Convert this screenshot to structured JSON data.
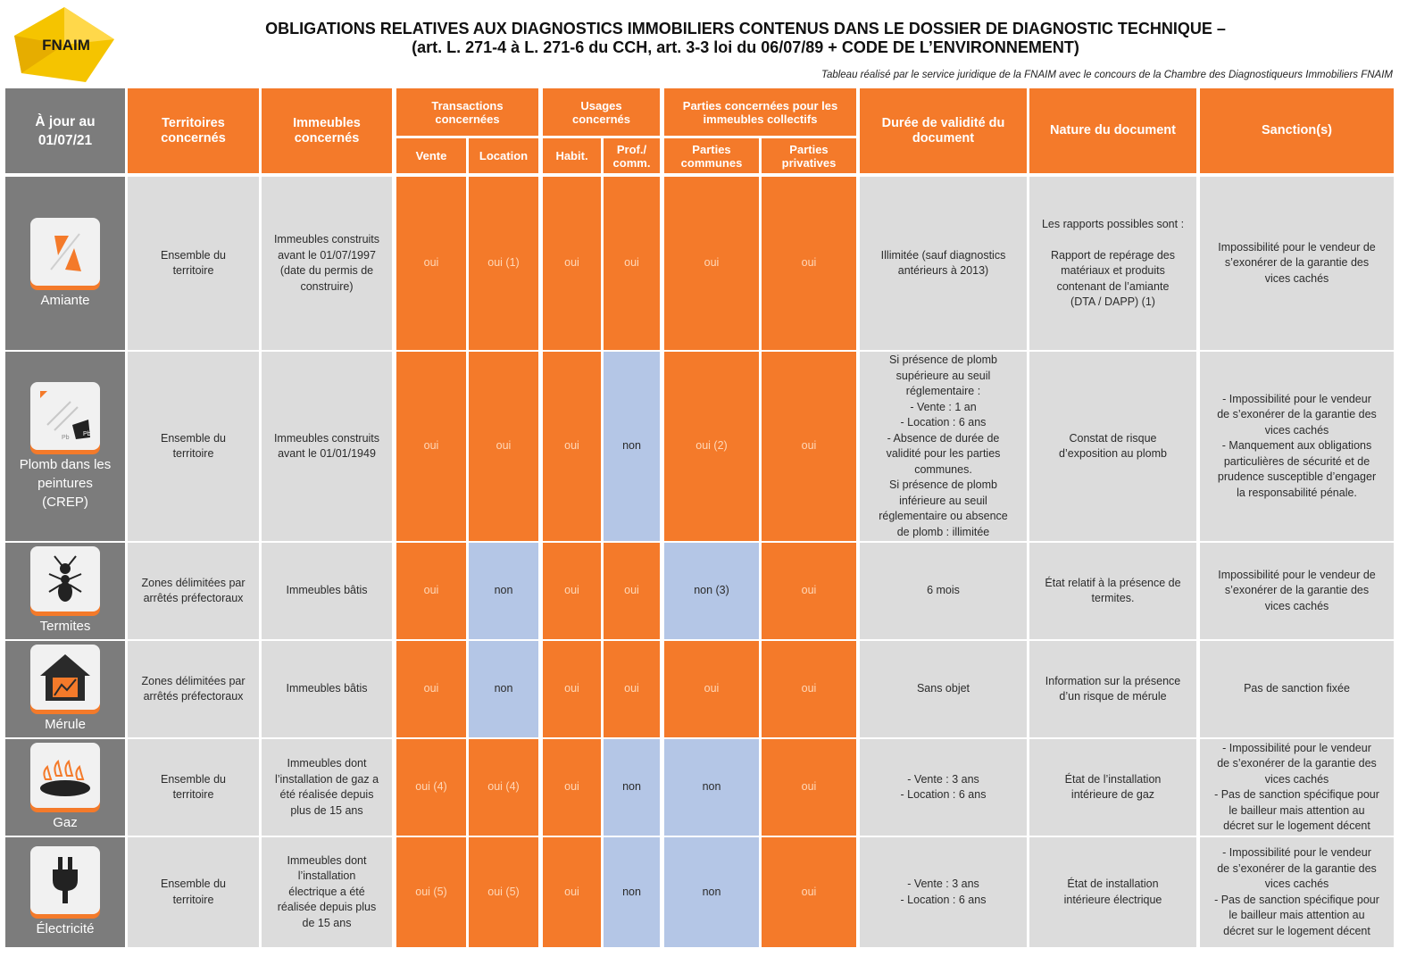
{
  "logo_text": "FNAIM",
  "title_line1": "OBLIGATIONS RELATIVES AUX DIAGNOSTICS IMMOBILIERS CONTENUS DANS LE DOSSIER DE DIAGNOSTIC TECHNIQUE –",
  "title_line2": "(art. L. 271-4 à L. 271-6 du CCH, art. 3-3 loi du 06/07/89 + CODE DE L’ENVIRONNEMENT)",
  "subtitle": "Tableau réalisé par le service juridique de la FNAIM avec le concours de la Chambre des Diagnostiqueurs Immobiliers FNAIM",
  "colors": {
    "orange": "#f47a2a",
    "gray": "#7c7c7c",
    "light": "#dcdcdc",
    "blue": "#b4c6e6"
  },
  "headers": {
    "date": "À jour au\n01/07/21",
    "territoires": "Territoires\nconcernés",
    "immeubles": "Immeubles\nconcernés",
    "transactions": "Transactions\nconcernées",
    "vente": "Vente",
    "location": "Location",
    "usages": "Usages\nconcernés",
    "habit": "Habit.",
    "prof": "Prof./\ncomm.",
    "parties": "Parties concernées pour les\nimmeubles collectifs",
    "communes": "Parties\ncommunes",
    "privatives": "Parties\nprivatives",
    "duree": "Durée de validité du\ndocument",
    "nature": "Nature du document",
    "sanction": "Sanction(s)"
  },
  "rows": [
    {
      "name": "Amiante",
      "icon": "asbestos-icon",
      "territoires": "Ensemble du\nterritoire",
      "immeubles": "Immeubles construits\navant le 01/07/1997\n(date du permis de\nconstruire)",
      "vente": "oui",
      "location": "oui (1)",
      "habit": "oui",
      "prof": "oui",
      "communes": "oui",
      "privatives": "oui",
      "duree": "Illimitée (sauf diagnostics\nantérieurs à 2013)",
      "nature": "Les rapports possibles sont :\n\nRapport de repérage des\nmatériaux et produits\ncontenant de l’amiante\n(DTA / DAPP) (1)",
      "sanction": "Impossibilité pour le vendeur de\ns’exonérer de la garantie des\nvices cachés",
      "blue": []
    },
    {
      "name": "Plomb dans les\npeintures\n(CREP)",
      "icon": "lead-paint-icon",
      "territoires": "Ensemble du\nterritoire",
      "immeubles": "Immeubles construits\navant le 01/01/1949",
      "vente": "oui",
      "location": "oui",
      "habit": "oui",
      "prof": "non",
      "communes": "oui (2)",
      "privatives": "oui",
      "duree": "Si présence de plomb\nsupérieure au seuil\nréglementaire :\n- Vente : 1 an\n- Location : 6 ans\n- Absence de durée de\nvalidité pour les parties\ncommunes.\nSi présence de plomb\ninférieure au seuil\nréglementaire ou absence\nde plomb : illimitée",
      "nature": "Constat de risque\nd’exposition au plomb",
      "sanction": "- Impossibilité pour le vendeur\nde s’exonérer de la garantie des\nvices cachés\n- Manquement aux obligations\nparticulières de sécurité et de\nprudence susceptible d’engager\nla responsabilité pénale.",
      "blue": [
        "prof"
      ]
    },
    {
      "name": "Termites",
      "icon": "termite-icon",
      "territoires": "Zones délimitées par\narrêtés préfectoraux",
      "immeubles": "Immeubles bâtis",
      "vente": "oui",
      "location": "non",
      "habit": "oui",
      "prof": "oui",
      "communes": "non (3)",
      "privatives": "oui",
      "duree": "6 mois",
      "nature": "État relatif à la présence de\ntermites.",
      "sanction": "Impossibilité pour le vendeur de\ns’exonérer de la garantie des\nvices cachés",
      "blue": [
        "location",
        "communes"
      ]
    },
    {
      "name": "Mérule",
      "icon": "merule-house-icon",
      "territoires": "Zones délimitées par\narrêtés préfectoraux",
      "immeubles": "Immeubles bâtis",
      "vente": "oui",
      "location": "non",
      "habit": "oui",
      "prof": "oui",
      "communes": "oui",
      "privatives": "oui",
      "duree": "Sans objet",
      "nature": "Information sur la présence\nd’un risque de mérule",
      "sanction": "Pas de sanction fixée",
      "blue": [
        "location"
      ]
    },
    {
      "name": "Gaz",
      "icon": "gas-burner-icon",
      "territoires": "Ensemble du\nterritoire",
      "immeubles": "Immeubles dont\nl’installation de gaz a\nété réalisée depuis\nplus de 15 ans",
      "vente": "oui (4)",
      "location": "oui (4)",
      "habit": "oui",
      "prof": "non",
      "communes": "non",
      "privatives": "oui",
      "duree": "- Vente : 3 ans\n- Location : 6 ans",
      "nature": "État de l’installation\nintérieure de gaz",
      "sanction": "- Impossibilité pour le vendeur\nde s’exonérer de la garantie des\nvices cachés\n- Pas de sanction spécifique pour\nle bailleur mais attention au\ndécret sur le logement décent",
      "blue": [
        "prof",
        "communes"
      ]
    },
    {
      "name": "Électricité",
      "icon": "electric-plug-icon",
      "territoires": "Ensemble du\nterritoire",
      "immeubles": "Immeubles dont\nl’installation\nélectrique a été\nréalisée depuis plus\nde 15 ans",
      "vente": "oui (5)",
      "location": "oui (5)",
      "habit": "oui",
      "prof": "non",
      "communes": "non",
      "privatives": "oui",
      "duree": "- Vente : 3 ans\n- Location : 6 ans",
      "nature": "État de installation\nintérieure électrique",
      "sanction": "- Impossibilité pour le vendeur\nde s’exonérer de la garantie des\nvices cachés\n- Pas de sanction spécifique pour\nle bailleur mais attention au\ndécret sur le logement décent",
      "blue": [
        "prof",
        "communes"
      ]
    }
  ]
}
